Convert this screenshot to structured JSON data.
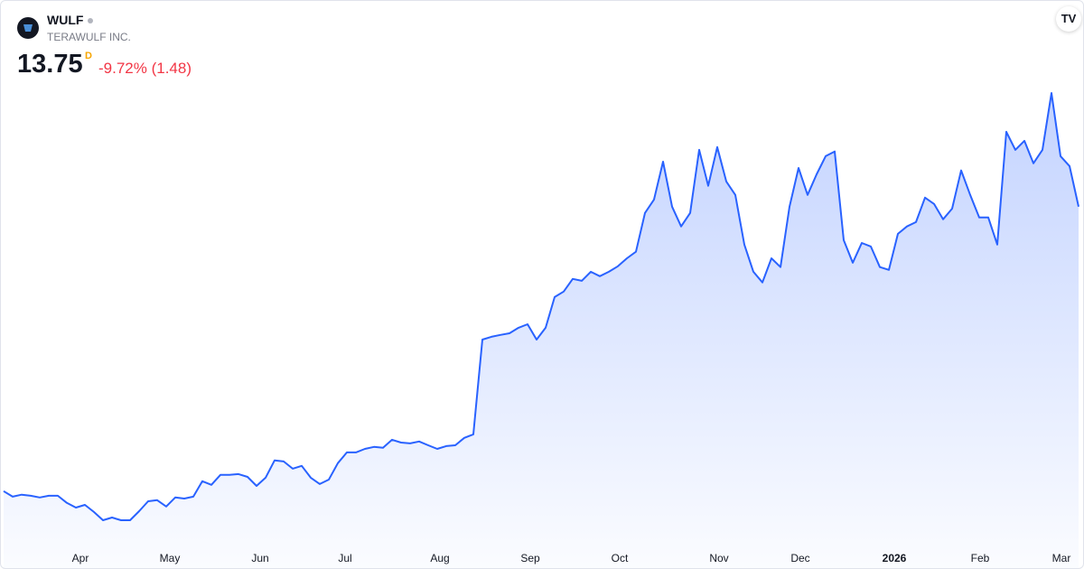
{
  "header": {
    "symbol": "WULF",
    "name": "TERAWULF INC.",
    "price": "13.75",
    "interval": "D",
    "change": "-9.72% (1.48)"
  },
  "chart_data": {
    "type": "area",
    "color": "#2962ff",
    "values": [
      3.39,
      3.19,
      3.26,
      3.22,
      3.16,
      3.22,
      3.22,
      2.96,
      2.79,
      2.89,
      2.63,
      2.33,
      2.43,
      2.33,
      2.33,
      2.66,
      3.02,
      3.06,
      2.83,
      3.16,
      3.12,
      3.19,
      3.75,
      3.62,
      3.98,
      3.98,
      4.01,
      3.91,
      3.58,
      3.88,
      4.51,
      4.47,
      4.21,
      4.31,
      3.88,
      3.65,
      3.81,
      4.41,
      4.8,
      4.8,
      4.93,
      5.0,
      4.97,
      5.26,
      5.16,
      5.13,
      5.2,
      5.06,
      4.93,
      5.03,
      5.06,
      5.33,
      5.46,
      8.91,
      9.01,
      9.08,
      9.14,
      9.34,
      9.47,
      8.91,
      9.34,
      10.46,
      10.66,
      11.12,
      11.05,
      11.38,
      11.22,
      11.38,
      11.58,
      11.87,
      12.11,
      13.52,
      14.01,
      15.39,
      13.75,
      13.03,
      13.52,
      15.82,
      14.51,
      15.92,
      14.67,
      14.18,
      12.37,
      11.38,
      10.99,
      11.87,
      11.55,
      13.75,
      15.16,
      14.18,
      14.93,
      15.59,
      15.76,
      12.53,
      11.71,
      12.43,
      12.3,
      11.55,
      11.45,
      12.76,
      13.03,
      13.19,
      14.08,
      13.85,
      13.29,
      13.68,
      15.07,
      14.18,
      13.36,
      13.36,
      12.37,
      16.48,
      15.82,
      16.15,
      15.33,
      15.82,
      17.89,
      15.59,
      15.23,
      13.75
    ],
    "xlim": [
      0,
      119
    ],
    "xticks": [
      {
        "value": 8.5,
        "label": "Apr"
      },
      {
        "value": 18.4,
        "label": "May"
      },
      {
        "value": 28.4,
        "label": "Jun"
      },
      {
        "value": 37.8,
        "label": "Jul"
      },
      {
        "value": 48.3,
        "label": "Aug"
      },
      {
        "value": 58.3,
        "label": "Sep"
      },
      {
        "value": 68.2,
        "label": "Oct"
      },
      {
        "value": 79.2,
        "label": "Nov"
      },
      {
        "value": 88.2,
        "label": "Dec"
      },
      {
        "value": 98.6,
        "label": "2026"
      },
      {
        "value": 108.1,
        "label": "Feb"
      },
      {
        "value": 117.1,
        "label": "Mar"
      }
    ]
  }
}
